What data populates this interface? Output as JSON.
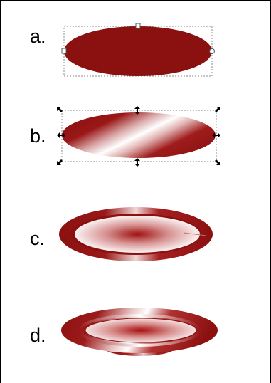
{
  "steps": [
    {
      "id": "a",
      "label": "a."
    },
    {
      "id": "b",
      "label": "b."
    },
    {
      "id": "c",
      "label": "c."
    },
    {
      "id": "d",
      "label": "d."
    }
  ],
  "colors": {
    "dark_red": "#8b1111",
    "mid_red": "#a01a1a",
    "highlight": "#ffffff",
    "selection_box": "#888888",
    "handle": "#000000"
  }
}
